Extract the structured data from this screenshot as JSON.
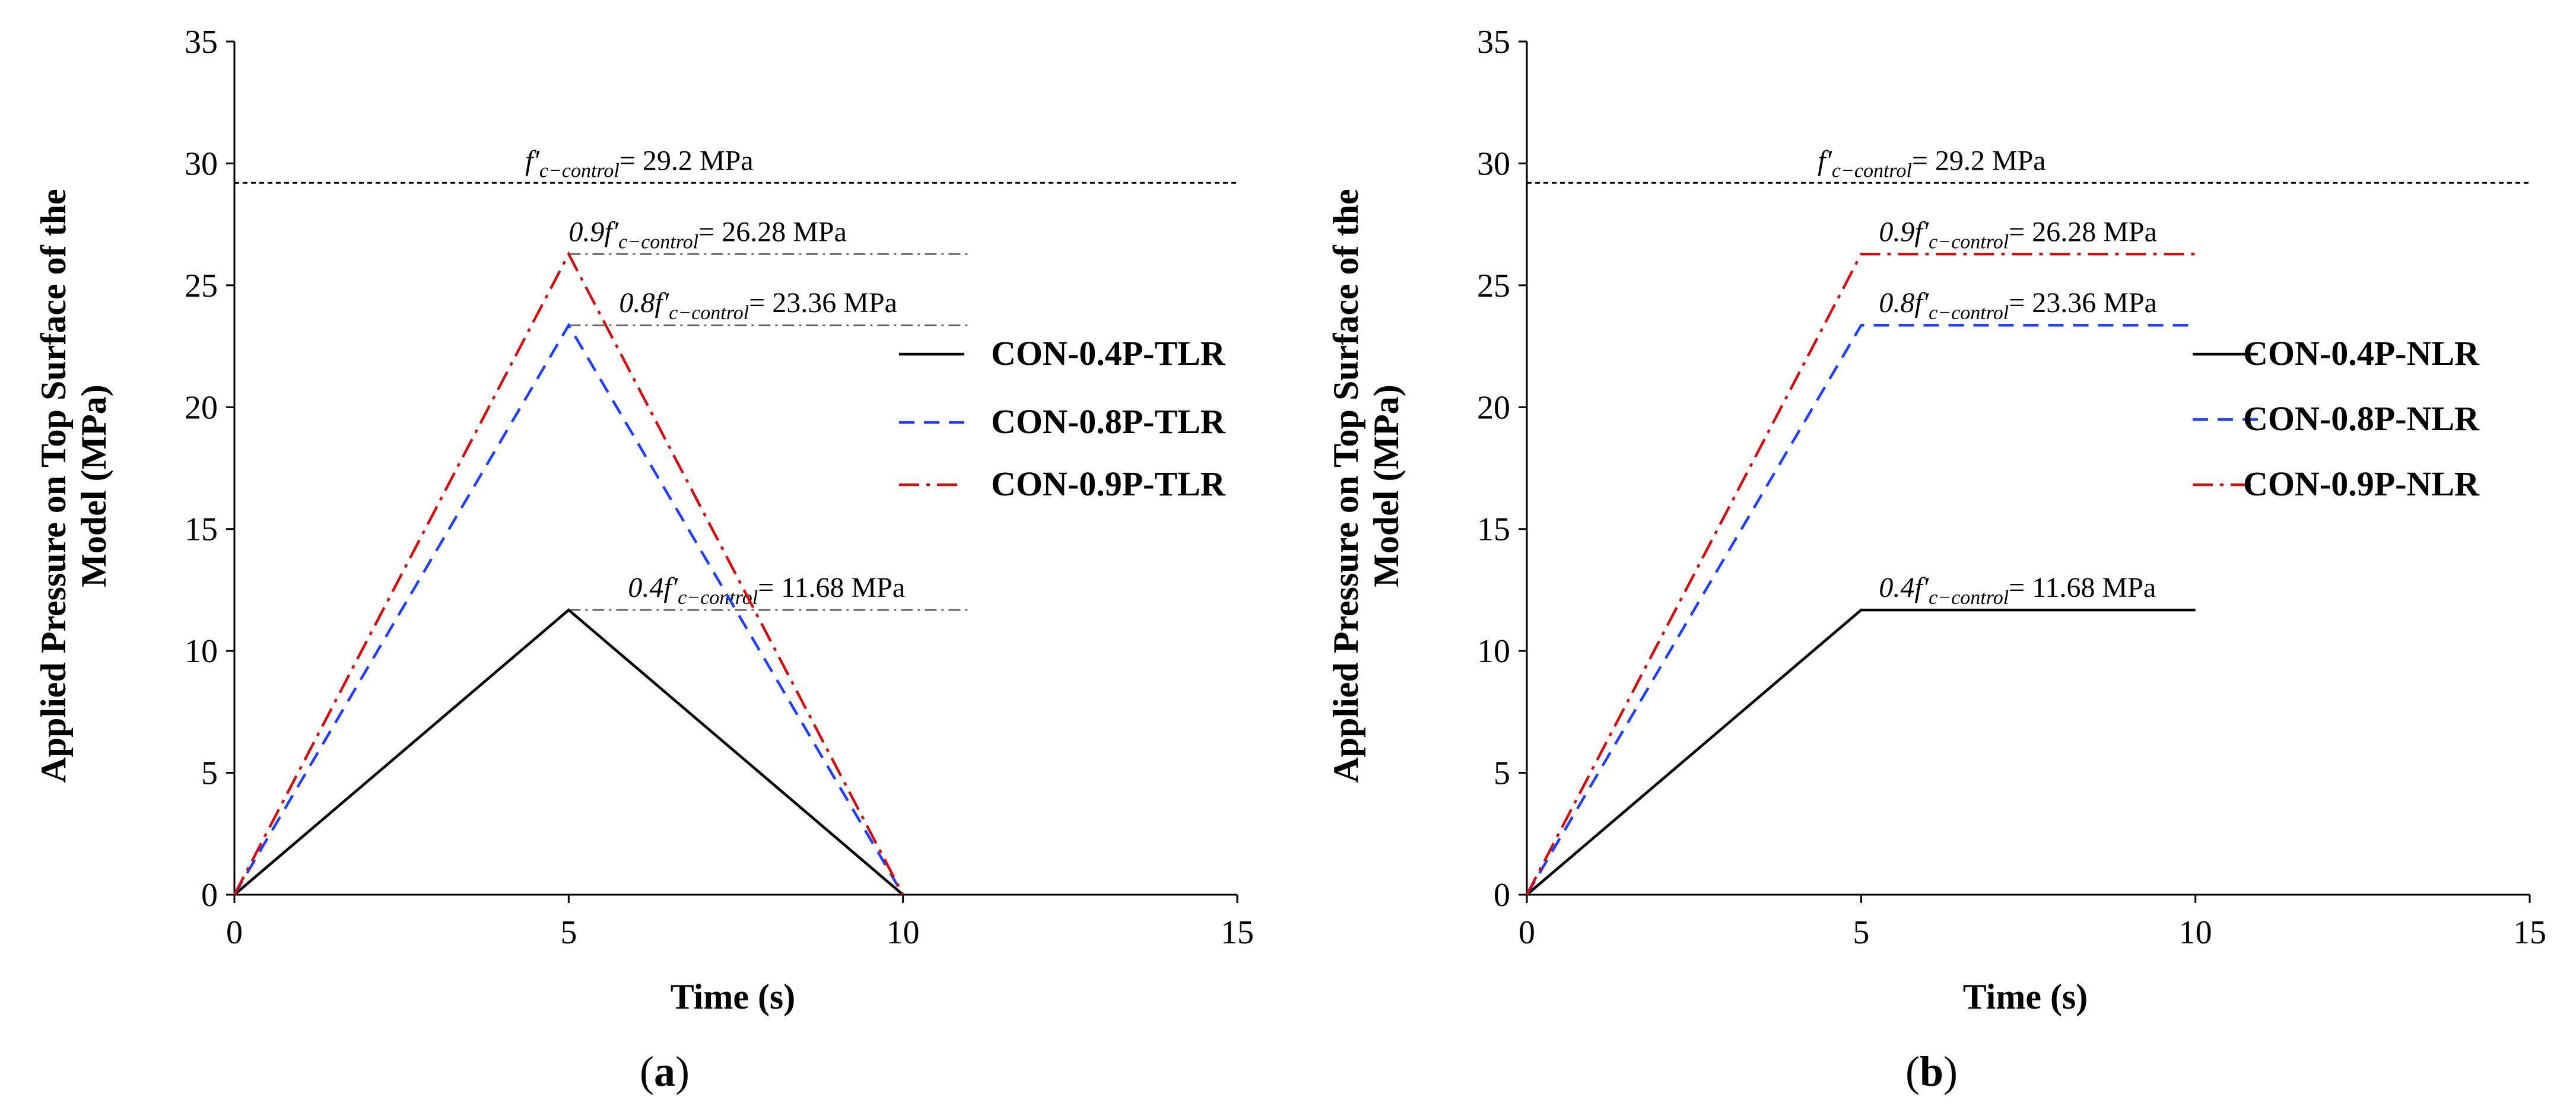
{
  "chart_data": [
    {
      "type": "line",
      "panel_label": "a",
      "xlabel": "Time (s)",
      "ylabel_line1": "Applied Pressure on Top Surface of the",
      "ylabel_line2": "Model (MPa)",
      "xlim": [
        0,
        15
      ],
      "ylim": [
        0,
        35
      ],
      "xticks": [
        "0",
        "5",
        "10",
        "15"
      ],
      "yticks": [
        "0",
        "5",
        "10",
        "15",
        "20",
        "25",
        "30",
        "35"
      ],
      "series": [
        {
          "name": "CON-0.4P-TLR",
          "color": "#000000",
          "dash": "solid",
          "x": [
            0,
            5,
            10
          ],
          "y": [
            0,
            11.68,
            0
          ]
        },
        {
          "name": "CON-0.8P-TLR",
          "color": "#1f3fff",
          "dash": "dash",
          "x": [
            0,
            5,
            10
          ],
          "y": [
            0,
            23.36,
            0
          ]
        },
        {
          "name": "CON-0.9P-TLR",
          "color": "#d01010",
          "dash": "dashdot",
          "x": [
            0,
            5,
            10
          ],
          "y": [
            0,
            26.28,
            0
          ]
        }
      ],
      "control_line": {
        "y": 29.2,
        "prefix": "f′",
        "sub": "c−control",
        "suffix": "= 29.2 MPa"
      },
      "ref_lines": [
        {
          "y": 26.28,
          "x0": 5,
          "x1": 11,
          "prefix": "0.9f′",
          "sub": "c−control",
          "suffix": "= 26.28 MPa"
        },
        {
          "y": 23.36,
          "x0": 5,
          "x1": 11,
          "prefix": "0.8f′",
          "sub": "c−control",
          "suffix": "= 23.36 MPa"
        },
        {
          "y": 11.68,
          "x0": 5,
          "x1": 11,
          "prefix": "0.4f′",
          "sub": "c−control",
          "suffix": "= 11.68 MPa"
        }
      ]
    },
    {
      "type": "line",
      "panel_label": "b",
      "xlabel": "Time (s)",
      "ylabel_line1": "Applied Pressure on Top Surface of the",
      "ylabel_line2": "Model (MPa)",
      "xlim": [
        0,
        15
      ],
      "ylim": [
        0,
        35
      ],
      "xticks": [
        "0",
        "5",
        "10",
        "15"
      ],
      "yticks": [
        "0",
        "5",
        "10",
        "15",
        "20",
        "25",
        "30",
        "35"
      ],
      "series": [
        {
          "name": "CON-0.4P-NLR",
          "color": "#000000",
          "dash": "solid",
          "x": [
            0,
            5,
            10
          ],
          "y": [
            0,
            11.68,
            11.68
          ]
        },
        {
          "name": "CON-0.8P-NLR",
          "color": "#1f3fff",
          "dash": "dash",
          "x": [
            0,
            5,
            10
          ],
          "y": [
            0,
            23.36,
            23.36
          ]
        },
        {
          "name": "CON-0.9P-NLR",
          "color": "#d01010",
          "dash": "dashdot",
          "x": [
            0,
            5,
            10
          ],
          "y": [
            0,
            26.28,
            26.28
          ]
        }
      ],
      "control_line": {
        "y": 29.2,
        "prefix": "f′",
        "sub": "c−control",
        "suffix": "= 29.2 MPa"
      },
      "ref_lines": [
        {
          "y": 26.28,
          "x0": 5,
          "x1": 10,
          "prefix": "0.9f′",
          "sub": "c−control",
          "suffix": "= 26.28 MPa"
        },
        {
          "y": 23.36,
          "x0": 5,
          "x1": 10,
          "prefix": "0.8f′",
          "sub": "c−control",
          "suffix": "= 23.36 MPa"
        },
        {
          "y": 11.68,
          "x0": 5,
          "x1": 10,
          "prefix": "0.4f′",
          "sub": "c−control",
          "suffix": "= 11.68 MPa"
        }
      ]
    }
  ]
}
